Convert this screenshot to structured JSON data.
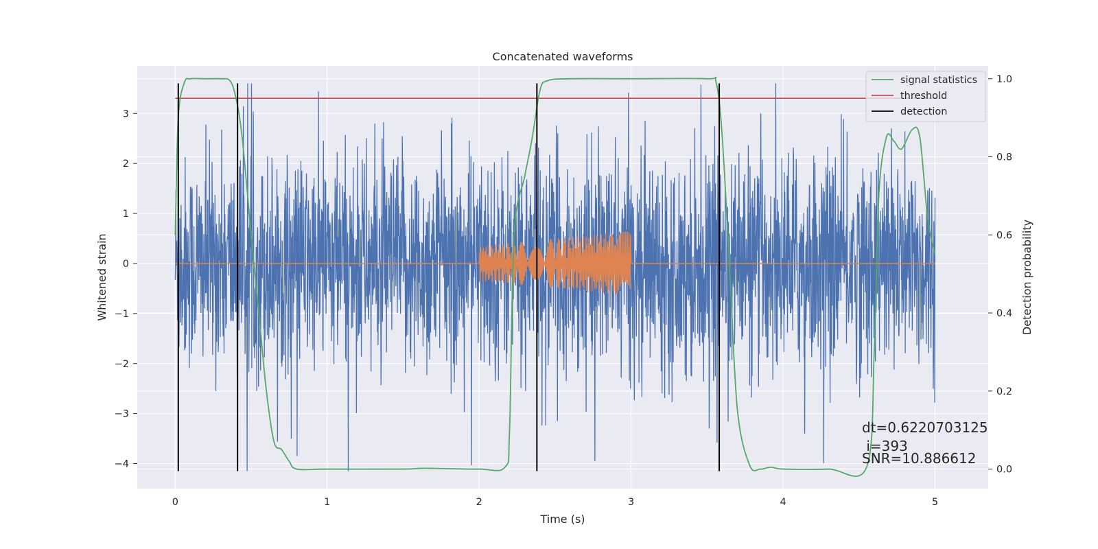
{
  "chart_data": {
    "type": "line",
    "title": "Concatenated waveforms",
    "xlabel": "Time (s)",
    "ylabel": "Whitened strain",
    "ylabel_right": "Detection probability",
    "xlim": [
      -0.25,
      5.35
    ],
    "ylim": [
      -4.5,
      3.95
    ],
    "ylim_right": [
      -0.05,
      1.033
    ],
    "x_ticks": [
      0,
      1,
      2,
      3,
      4,
      5
    ],
    "y_ticks": [
      -4,
      -3,
      -2,
      -1,
      0,
      1,
      2,
      3
    ],
    "y_ticks_right": [
      0.0,
      0.2,
      0.4,
      0.6,
      0.8,
      1.0
    ],
    "x_tick_labels": [
      "0",
      "1",
      "2",
      "3",
      "4",
      "5"
    ],
    "y_tick_labels": [
      "−4",
      "−3",
      "−2",
      "−1",
      "0",
      "1",
      "2",
      "3"
    ],
    "y_tick_labels_right": [
      "0.0",
      "0.2",
      "0.4",
      "0.6",
      "0.8",
      "1.0"
    ],
    "grid": true,
    "legend_position": "top-right",
    "colors": {
      "background": "#eaeaf2",
      "grid": "#ffffff",
      "strain": "#4c72b0",
      "template": "#dd8452",
      "statistics": "#55a868",
      "threshold": "#c44e52",
      "detection": "#000000"
    },
    "series": [
      {
        "name": "",
        "axis": "left",
        "kind": "noise",
        "x_range": [
          0,
          5
        ],
        "typical_range": [
          -1.5,
          1.5
        ],
        "peak_max": 3.6,
        "peak_min": -4.15
      },
      {
        "name": "",
        "axis": "left",
        "kind": "chirp",
        "x_range": [
          0,
          5
        ],
        "chirp_x_range": [
          2.0,
          3.0
        ],
        "amplitude_start": 0.35,
        "amplitude_end": 0.65
      },
      {
        "name": "signal statistics",
        "axis": "right",
        "x": [
          0,
          0.02,
          0.06,
          0.1,
          0.2,
          0.3,
          0.36,
          0.4,
          0.44,
          0.5,
          0.55,
          0.6,
          0.65,
          0.7,
          0.75,
          0.8,
          1.0,
          1.5,
          1.65,
          2.0,
          2.17,
          2.2,
          2.23,
          2.3,
          2.35,
          2.4,
          2.45,
          2.6,
          3.0,
          3.5,
          3.56,
          3.6,
          3.65,
          3.7,
          3.78,
          3.85,
          3.92,
          4.0,
          4.3,
          4.55,
          4.6,
          4.63,
          4.68,
          4.73,
          4.78,
          4.85,
          4.9,
          4.95,
          5.0
        ],
        "y": [
          0.6,
          0.9,
          0.99,
          1.0,
          1.0,
          1.0,
          0.995,
          0.95,
          0.85,
          0.6,
          0.4,
          0.2,
          0.07,
          0.05,
          0.02,
          0.0,
          0.0,
          0.0,
          0.002,
          0.0,
          0.005,
          0.1,
          0.6,
          0.75,
          0.85,
          0.97,
          0.995,
          1.0,
          1.0,
          1.0,
          0.99,
          0.85,
          0.5,
          0.15,
          0.01,
          0.0,
          0.005,
          0.0,
          0.0,
          0.005,
          0.3,
          0.7,
          0.85,
          0.84,
          0.82,
          0.87,
          0.85,
          0.65,
          0.55
        ]
      },
      {
        "name": "threshold",
        "axis": "right",
        "x": [
          0,
          5.05
        ],
        "y": [
          0.95,
          0.95
        ]
      },
      {
        "name": "detection",
        "axis": "left",
        "x_positions": [
          0.02,
          0.41,
          2.38,
          3.58
        ],
        "y_extent": [
          -4.15,
          3.6
        ]
      }
    ],
    "annotations": [
      "dt=0.6220703125",
      " i=393",
      "SNR=10.886612"
    ]
  }
}
